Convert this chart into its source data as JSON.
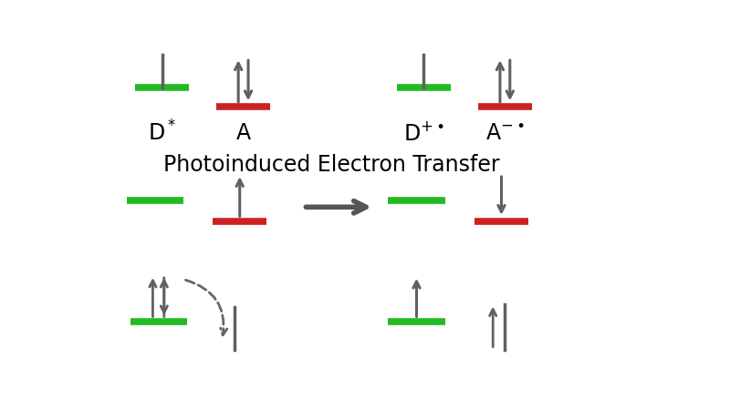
{
  "bg_color": "#ffffff",
  "green_color": "#22bb22",
  "red_color": "#cc2222",
  "arrow_color": "#606060",
  "title": "Photoinduced Electron Transfer",
  "title_fontsize": 17,
  "label_fontsize": 17
}
